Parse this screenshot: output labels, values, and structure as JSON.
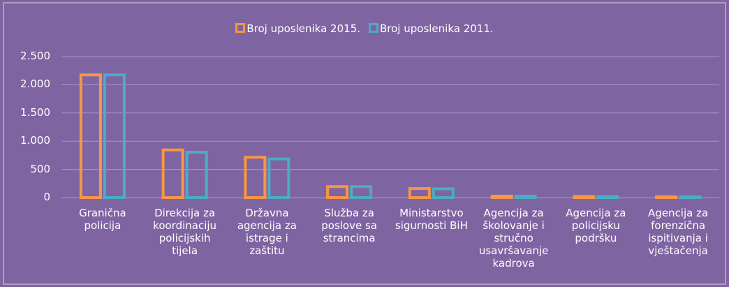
{
  "chart_data": {
    "type": "bar",
    "categories": [
      "Granična policija",
      "Direkcija za koordinaciju policijskih tijela",
      "Državna agencija za istrage i zaštitu",
      "Služba za poslove sa strancima",
      "Ministarstvo sigurnosti BiH",
      "Agencija za školovanje i stručno usavršavanje kadrova",
      "Agencija za policijsku podršku",
      "Agencija za forenzična ispitivanja i vještačenja"
    ],
    "series": [
      {
        "name": "Broj uposlenika 2015.",
        "color": "#f79646",
        "values": [
          2200,
          870,
          740,
          220,
          185,
          50,
          45,
          40
        ]
      },
      {
        "name": "Broj uposlenika 2011.",
        "color": "#4bacc6",
        "values": [
          2200,
          830,
          710,
          220,
          180,
          50,
          45,
          40
        ]
      }
    ],
    "ylim": [
      0,
      2500
    ],
    "yticks": [
      0,
      500,
      {
        "value": 1000,
        "label": "1.000"
      },
      {
        "value": 1500,
        "label": "1.500"
      },
      {
        "value": 2000,
        "label": "2.000"
      },
      {
        "value": 2500,
        "label": "2.500"
      }
    ],
    "grid": true,
    "legend": "top"
  }
}
